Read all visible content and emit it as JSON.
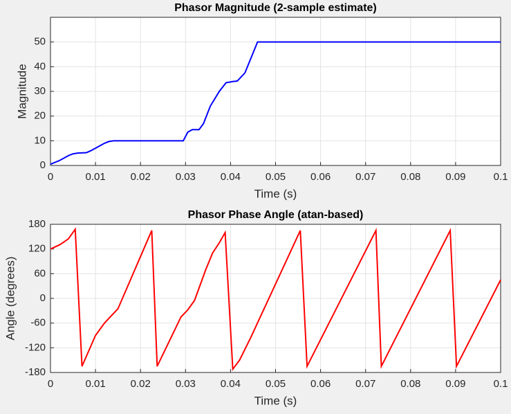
{
  "chart_data": [
    {
      "type": "line",
      "title": "Phasor Magnitude (2-sample estimate)",
      "xlabel": "Time (s)",
      "ylabel": "Magnitude",
      "x": [
        0,
        0.002,
        0.004,
        0.005,
        0.006,
        0.008,
        0.009,
        0.011,
        0.012,
        0.013,
        0.014,
        0.02,
        0.029,
        0.0295,
        0.0305,
        0.0315,
        0.033,
        0.034,
        0.0355,
        0.0375,
        0.039,
        0.0405,
        0.0415,
        0.0432,
        0.046,
        0.1
      ],
      "series": [
        {
          "name": "Magnitude",
          "color": "#0000ff",
          "values": [
            0.5,
            2,
            4,
            4.7,
            5,
            5.2,
            6,
            8,
            9,
            9.7,
            10,
            10,
            10,
            10,
            13.5,
            14.5,
            14.5,
            17,
            24,
            30,
            33.5,
            34,
            34.2,
            37.5,
            50,
            50
          ]
        }
      ],
      "xlim": [
        0,
        0.1
      ],
      "xticks": [
        0,
        0.01,
        0.02,
        0.03,
        0.04,
        0.05,
        0.06,
        0.07,
        0.08,
        0.09,
        0.1
      ],
      "ylim": [
        0,
        60
      ],
      "yticks": [
        0,
        10,
        20,
        30,
        40,
        50
      ],
      "grid": true
    },
    {
      "type": "line",
      "title": "Phasor Phase Angle (atan-based)",
      "xlabel": "Time (s)",
      "ylabel": "Angle (degrees)",
      "x": [
        0,
        0.002,
        0.003,
        0.004,
        0.0055,
        0.007,
        0.008,
        0.01,
        0.012,
        0.015,
        0.0225,
        0.0237,
        0.029,
        0.0305,
        0.032,
        0.033,
        0.0345,
        0.036,
        0.0375,
        0.0388,
        0.0405,
        0.042,
        0.0445,
        0.0555,
        0.057,
        0.0723,
        0.0735,
        0.0888,
        0.0902,
        0.1
      ],
      "series": [
        {
          "name": "Angle",
          "color": "#ff0000",
          "values": [
            120,
            130,
            137,
            145,
            168,
            -165,
            -140,
            -90,
            -60,
            -25,
            165,
            -165,
            -45,
            -28,
            -5,
            25,
            70,
            110,
            135,
            160,
            -172,
            -150,
            -95,
            165,
            -165,
            165,
            -165,
            165,
            -165,
            45
          ]
        }
      ],
      "xlim": [
        0,
        0.1
      ],
      "xticks": [
        0,
        0.01,
        0.02,
        0.03,
        0.04,
        0.05,
        0.06,
        0.07,
        0.08,
        0.09,
        0.1
      ],
      "ylim": [
        -180,
        180
      ],
      "yticks": [
        -180,
        -120,
        -60,
        0,
        60,
        120,
        180
      ],
      "grid": true
    }
  ]
}
